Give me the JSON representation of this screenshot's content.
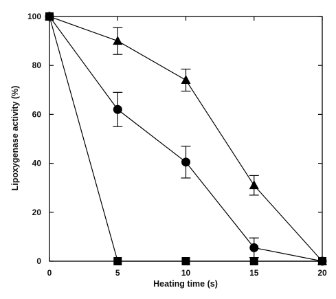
{
  "chart_data": {
    "type": "line",
    "title": "",
    "xlabel": "Heating time (s)",
    "ylabel": "Lipoxygenase activity (%)",
    "x": [
      0,
      5,
      10,
      15,
      20
    ],
    "xlim": [
      0,
      20
    ],
    "ylim": [
      0,
      100
    ],
    "xticks": [
      "0",
      "5",
      "10",
      "15",
      "20"
    ],
    "yticks": [
      "0",
      "20",
      "40",
      "60",
      "80",
      "100"
    ],
    "grid": false,
    "legend": "none",
    "series": [
      {
        "marker": "triangle",
        "color": "#000000",
        "values": [
          100,
          90,
          74,
          31,
          0
        ],
        "errors": [
          0,
          5.5,
          4.5,
          4,
          0
        ]
      },
      {
        "marker": "circle",
        "color": "#000000",
        "values": [
          100,
          62,
          40.5,
          5.5,
          0
        ],
        "errors": [
          0,
          7,
          6.5,
          4,
          0
        ]
      },
      {
        "marker": "square",
        "color": "#000000",
        "values": [
          100,
          0,
          0,
          0,
          0
        ],
        "errors": [
          0,
          0,
          0,
          0,
          0
        ]
      }
    ]
  }
}
